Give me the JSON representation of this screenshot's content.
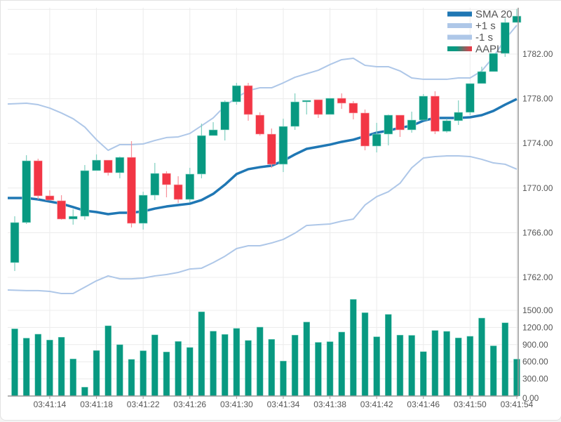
{
  "chart_data": {
    "type": "candlestick",
    "symbol": "AAPL",
    "colors": {
      "up": "#089981",
      "down": "#f23645",
      "sma": "#1f77b4",
      "band": "#aec7e8",
      "volume": "#089981"
    },
    "x": [
      "03:41:11",
      "03:41:12",
      "03:41:13",
      "03:41:14",
      "03:41:15",
      "03:41:16",
      "03:41:17",
      "03:41:18",
      "03:41:19",
      "03:41:20",
      "03:41:21",
      "03:41:22",
      "03:41:23",
      "03:41:24",
      "03:41:25",
      "03:41:26",
      "03:41:27",
      "03:41:28",
      "03:41:29",
      "03:41:30",
      "03:41:31",
      "03:41:32",
      "03:41:33",
      "03:41:34",
      "03:41:35",
      "03:41:36",
      "03:41:37",
      "03:41:38",
      "03:41:39",
      "03:41:40",
      "03:41:41",
      "03:41:42",
      "03:41:43",
      "03:41:44",
      "03:41:45",
      "03:41:46",
      "03:41:47",
      "03:41:48",
      "03:41:49",
      "03:41:50",
      "03:41:51",
      "03:41:52",
      "03:41:53",
      "03:41:54"
    ],
    "ohlc": [
      [
        1763.32,
        1767.47,
        1762.57,
        1766.91
      ],
      [
        1766.91,
        1772.94,
        1766.78,
        1772.44
      ],
      [
        1772.44,
        1772.63,
        1768.98,
        1769.3
      ],
      [
        1769.3,
        1769.8,
        1768.92,
        1768.92
      ],
      [
        1768.86,
        1769.36,
        1767.16,
        1767.22
      ],
      [
        1767.22,
        1768.1,
        1766.72,
        1767.47
      ],
      [
        1767.47,
        1772.06,
        1767.16,
        1771.56
      ],
      [
        1771.56,
        1773.01,
        1771.56,
        1772.5
      ],
      [
        1772.5,
        1772.5,
        1771.12,
        1771.37
      ],
      [
        1771.37,
        1772.82,
        1770.87,
        1772.75
      ],
      [
        1772.75,
        1774.2,
        1766.47,
        1766.84
      ],
      [
        1766.84,
        1769.67,
        1766.28,
        1769.36
      ],
      [
        1769.36,
        1772.25,
        1768.92,
        1771.31
      ],
      [
        1771.31,
        1771.5,
        1769.17,
        1770.3
      ],
      [
        1770.3,
        1771.06,
        1768.67,
        1768.98
      ],
      [
        1768.98,
        1771.81,
        1768.73,
        1771.25
      ],
      [
        1771.25,
        1775.77,
        1770.87,
        1774.7
      ],
      [
        1774.7,
        1775.9,
        1774.7,
        1775.21
      ],
      [
        1775.21,
        1777.85,
        1774.26,
        1777.72
      ],
      [
        1777.72,
        1779.42,
        1777.47,
        1779.17
      ],
      [
        1779.17,
        1779.42,
        1776.03,
        1776.59
      ],
      [
        1776.53,
        1776.78,
        1774.7,
        1774.83
      ],
      [
        1774.83,
        1775.33,
        1771.81,
        1772.13
      ],
      [
        1772.13,
        1776.21,
        1771.43,
        1775.52
      ],
      [
        1775.52,
        1778.48,
        1775.21,
        1777.72
      ],
      [
        1777.72,
        1777.85,
        1776.59,
        1777.85
      ],
      [
        1777.91,
        1777.91,
        1776.28,
        1776.59
      ],
      [
        1776.59,
        1778.04,
        1776.59,
        1778.04
      ],
      [
        1778.04,
        1778.48,
        1777.09,
        1777.6
      ],
      [
        1777.6,
        1777.79,
        1776.15,
        1776.72
      ],
      [
        1776.72,
        1777.03,
        1773.38,
        1773.76
      ],
      [
        1773.76,
        1775.84,
        1773.19,
        1774.83
      ],
      [
        1774.83,
        1776.59,
        1773.82,
        1776.53
      ],
      [
        1776.53,
        1776.53,
        1774.58,
        1775.21
      ],
      [
        1775.21,
        1776.84,
        1774.96,
        1776.09
      ],
      [
        1776.09,
        1778.42,
        1776.09,
        1778.23
      ],
      [
        1778.23,
        1778.67,
        1774.83,
        1775.08
      ],
      [
        1775.08,
        1776.21,
        1774.96,
        1776.03
      ],
      [
        1776.03,
        1777.85,
        1775.65,
        1776.78
      ],
      [
        1776.78,
        1779.36,
        1776.53,
        1779.36
      ],
      [
        1779.36,
        1780.87,
        1779.36,
        1780.43
      ],
      [
        1780.43,
        1782.06,
        1780.43,
        1782.06
      ],
      [
        1782.06,
        1785.21,
        1781.75,
        1784.83
      ],
      [
        1784.83,
        1786.03,
        1784.83,
        1785.4
      ]
    ],
    "volume": [
      1177,
      1014,
      1083,
      981,
      1030,
      650,
      155,
      797,
      1230,
      899,
      642,
      793,
      1071,
      772,
      956,
      850,
      1475,
      1136,
      1079,
      1185,
      973,
      1206,
      993,
      613,
      1067,
      1296,
      940,
      952,
      1120,
      1692,
      1459,
      1038,
      1430,
      1067,
      1063,
      777,
      1148,
      1132,
      1018,
      1046,
      1365,
      879,
      1283,
      646
    ],
    "series": [
      {
        "name": "SMA 20",
        "values": [
          1769.11,
          1769.11,
          1768.98,
          1768.79,
          1768.6,
          1768.29,
          1767.97,
          1767.85,
          1767.66,
          1767.79,
          1767.79,
          1767.91,
          1768.16,
          1768.35,
          1768.48,
          1768.6,
          1768.92,
          1769.48,
          1770.3,
          1771.25,
          1771.69,
          1771.87,
          1772.0,
          1772.44,
          1773.01,
          1773.51,
          1773.7,
          1773.89,
          1774.14,
          1774.33,
          1774.64,
          1774.96,
          1775.14,
          1775.4,
          1775.58,
          1776.03,
          1776.28,
          1776.28,
          1776.28,
          1776.34,
          1776.53,
          1776.91,
          1777.47,
          1777.97
        ]
      },
      {
        "name": "+1 s",
        "values": [
          1777.53,
          1777.6,
          1777.47,
          1777.16,
          1776.72,
          1776.21,
          1775.46,
          1774.33,
          1773.38,
          1773.89,
          1773.89,
          1773.95,
          1774.26,
          1774.52,
          1774.58,
          1774.89,
          1775.58,
          1776.28,
          1777.35,
          1778.1,
          1778.73,
          1778.98,
          1778.98,
          1779.42,
          1779.92,
          1780.24,
          1780.55,
          1781.06,
          1781.5,
          1781.62,
          1780.99,
          1780.87,
          1780.87,
          1780.49,
          1779.86,
          1779.74,
          1779.74,
          1779.74,
          1779.86,
          1779.86,
          1780.49,
          1781.75,
          1783.32,
          1784.58
        ]
      },
      {
        "name": "-1 s",
        "values": [
          1760.87,
          1760.81,
          1760.81,
          1760.74,
          1760.55,
          1760.55,
          1761.12,
          1761.69,
          1762.13,
          1761.87,
          1761.87,
          1761.94,
          1762.13,
          1762.25,
          1762.44,
          1762.75,
          1762.82,
          1763.32,
          1763.89,
          1764.58,
          1764.83,
          1764.83,
          1765.08,
          1765.4,
          1765.96,
          1766.65,
          1766.72,
          1766.78,
          1767.03,
          1767.22,
          1768.48,
          1769.23,
          1769.67,
          1770.43,
          1771.81,
          1772.69,
          1772.82,
          1772.88,
          1772.88,
          1772.82,
          1772.57,
          1772.25,
          1772.13,
          1771.69
        ]
      }
    ],
    "legend": {
      "position": "top-right",
      "entries": [
        "SMA 20",
        "+1 s",
        "-1 s",
        "AAPL"
      ]
    },
    "price_ticks": [
      "1762.00",
      "1766.00",
      "1770.00",
      "1774.00",
      "1778.00",
      "1782.00"
    ],
    "volume_ticks": [
      "0.00",
      "300.00",
      "600.00",
      "900.00",
      "1200.00",
      "1500.00"
    ],
    "x_ticks": [
      "03:41:14",
      "03:41:18",
      "03:41:22",
      "03:41:26",
      "03:41:30",
      "03:41:34",
      "03:41:38",
      "03:41:42",
      "03:41:46",
      "03:41:50",
      "03:41:54"
    ],
    "price_range": [
      1757.3,
      1786.4
    ],
    "volume_range": [
      0,
      1700
    ],
    "grid": true
  }
}
